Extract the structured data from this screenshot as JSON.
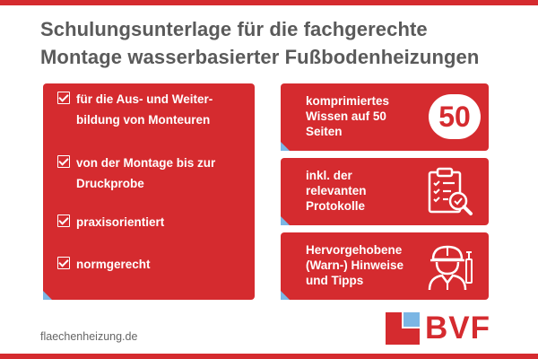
{
  "title": {
    "line1": "Schulungsunterlage für die fachgerechte",
    "line2": "Montage wasserbasierter Fußbodenheizungen"
  },
  "features": [
    {
      "line1": "für die Aus- und Weiter-",
      "line2": "bildung von Monteuren"
    },
    {
      "line1": "von der Montage bis zur",
      "line2": "Druckprobe"
    },
    {
      "line1": "praxisorientiert",
      "line2": ""
    },
    {
      "line1": "normgerecht",
      "line2": ""
    }
  ],
  "highlights": [
    {
      "lines": [
        "komprimiertes",
        "Wissen auf 50",
        "Seiten"
      ],
      "badge": "50"
    },
    {
      "lines": [
        "inkl. der",
        "relevanten",
        "Protokolle"
      ],
      "icon": "clipboard-checklist-icon"
    },
    {
      "lines": [
        "Hervorgehobene",
        "(Warn-) Hinweise",
        "und Tipps"
      ],
      "icon": "worker-helmet-icon"
    }
  ],
  "footer": {
    "website": "flaechenheizung.de",
    "logo_text": "BVF"
  },
  "colors": {
    "brand_red": "#d52b2f",
    "accent_blue": "#7bb6e4",
    "title_gray": "#5a5a5a"
  }
}
